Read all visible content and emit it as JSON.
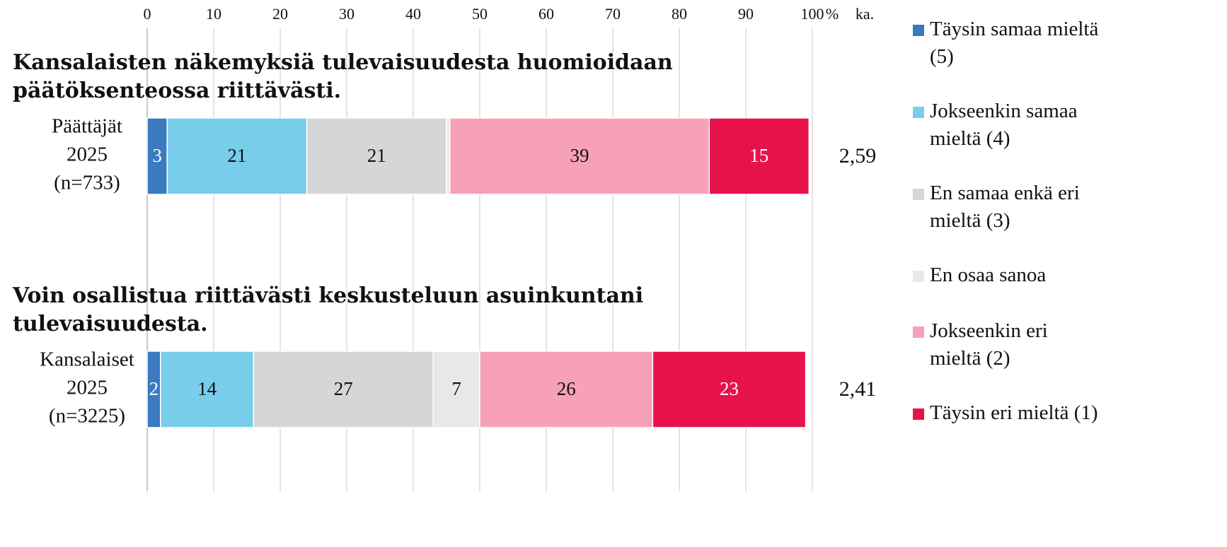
{
  "chart_data": {
    "type": "bar",
    "orientation": "horizontal",
    "stacked": true,
    "xlim": [
      0,
      100
    ],
    "xticks": [
      0,
      10,
      20,
      30,
      40,
      50,
      60,
      70,
      80,
      90,
      100
    ],
    "x_unit": "%",
    "grid": true,
    "legend": "right",
    "mean_header": "ka.",
    "panel_titles": [
      [
        "Kansalaisten näkemyksiä tulevaisuudesta huomioidaan",
        "päätöksenteossa riittävästi."
      ],
      [
        "Voin osallistua riittävästi keskusteluun asuinkuntani",
        "tulevaisuudesta."
      ]
    ],
    "categories": [
      [
        "Päättäjät",
        "2025",
        "(n=733)"
      ],
      [
        "Kansalaiset",
        "2025",
        "(n=3225)"
      ]
    ],
    "means": [
      {
        "value": 2.59,
        "label": "2,59"
      },
      {
        "value": 2.41,
        "label": "2,41"
      }
    ],
    "series": [
      {
        "name": "Täysin samaa mieltä (5)",
        "color": "#3a7abf",
        "values": [
          3,
          2
        ]
      },
      {
        "name": "Jokseenkin samaa mieltä (4)",
        "color": "#77cdea",
        "values": [
          21,
          14
        ]
      },
      {
        "name": "En samaa enkä eri mieltä (3)",
        "color": "#d6d6d6",
        "values": [
          21,
          27
        ]
      },
      {
        "name": "En osaa sanoa",
        "color": "#e8e8e8",
        "values": [
          0.5,
          7
        ]
      },
      {
        "name": "Jokseenkin eri mieltä (2)",
        "color": "#f7a1b8",
        "values": [
          39,
          26
        ]
      },
      {
        "name": "Täysin eri mieltä (1)",
        "color": "#e8124b",
        "values": [
          15,
          23
        ]
      }
    ]
  }
}
